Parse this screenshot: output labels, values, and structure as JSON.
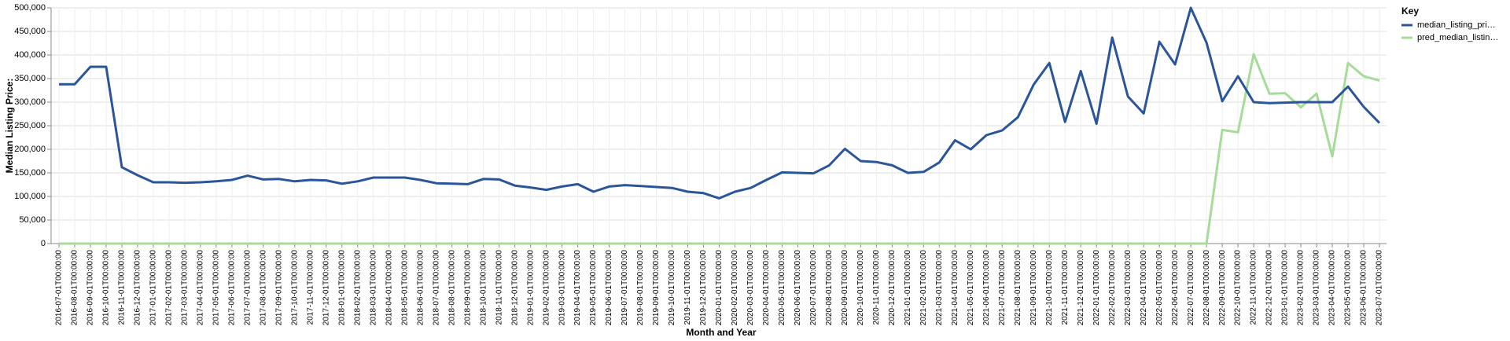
{
  "chart_data": {
    "type": "line",
    "x_label": "Month and Year",
    "y_label": "Median Listing Price:",
    "legend_title": "Key",
    "legend_position": "right",
    "grid": true,
    "categories": [
      "2016-07-01T00:00:00",
      "2016-08-01T00:00:00",
      "2016-09-01T00:00:00",
      "2016-10-01T00:00:00",
      "2016-11-01T00:00:00",
      "2016-12-01T00:00:00",
      "2017-01-01T00:00:00",
      "2017-02-01T00:00:00",
      "2017-03-01T00:00:00",
      "2017-04-01T00:00:00",
      "2017-05-01T00:00:00",
      "2017-06-01T00:00:00",
      "2017-07-01T00:00:00",
      "2017-08-01T00:00:00",
      "2017-09-01T00:00:00",
      "2017-10-01T00:00:00",
      "2017-11-01T00:00:00",
      "2017-12-01T00:00:00",
      "2018-01-01T00:00:00",
      "2018-02-01T00:00:00",
      "2018-03-01T00:00:00",
      "2018-04-01T00:00:00",
      "2018-05-01T00:00:00",
      "2018-06-01T00:00:00",
      "2018-07-01T00:00:00",
      "2018-08-01T00:00:00",
      "2018-09-01T00:00:00",
      "2018-10-01T00:00:00",
      "2018-11-01T00:00:00",
      "2018-12-01T00:00:00",
      "2019-01-01T00:00:00",
      "2019-02-01T00:00:00",
      "2019-03-01T00:00:00",
      "2019-04-01T00:00:00",
      "2019-05-01T00:00:00",
      "2019-06-01T00:00:00",
      "2019-07-01T00:00:00",
      "2019-08-01T00:00:00",
      "2019-09-01T00:00:00",
      "2019-10-01T00:00:00",
      "2019-11-01T00:00:00",
      "2019-12-01T00:00:00",
      "2020-01-01T00:00:00",
      "2020-02-01T00:00:00",
      "2020-03-01T00:00:00",
      "2020-04-01T00:00:00",
      "2020-05-01T00:00:00",
      "2020-06-01T00:00:00",
      "2020-07-01T00:00:00",
      "2020-08-01T00:00:00",
      "2020-09-01T00:00:00",
      "2020-10-01T00:00:00",
      "2020-11-01T00:00:00",
      "2020-12-01T00:00:00",
      "2021-01-01T00:00:00",
      "2021-02-01T00:00:00",
      "2021-03-01T00:00:00",
      "2021-04-01T00:00:00",
      "2021-05-01T00:00:00",
      "2021-06-01T00:00:00",
      "2021-07-01T00:00:00",
      "2021-08-01T00:00:00",
      "2021-09-01T00:00:00",
      "2021-10-01T00:00:00",
      "2021-11-01T00:00:00",
      "2021-12-01T00:00:00",
      "2022-01-01T00:00:00",
      "2022-02-01T00:00:00",
      "2022-03-01T00:00:00",
      "2022-04-01T00:00:00",
      "2022-05-01T00:00:00",
      "2022-06-01T00:00:00",
      "2022-07-01T00:00:00",
      "2022-08-01T00:00:00",
      "2022-09-01T00:00:00",
      "2022-10-01T00:00:00",
      "2022-11-01T00:00:00",
      "2022-12-01T00:00:00",
      "2023-01-01T00:00:00",
      "2023-02-01T00:00:00",
      "2023-03-01T00:00:00",
      "2023-04-01T00:00:00",
      "2023-05-01T00:00:00",
      "2023-06-01T00:00:00",
      "2023-07-01T00:00:00"
    ],
    "series": [
      {
        "name": "median_listing_pri…",
        "color": "#2a5599",
        "values": [
          338000,
          338000,
          375000,
          375000,
          162000,
          145000,
          130000,
          130000,
          129000,
          130000,
          132000,
          135000,
          144000,
          136000,
          137000,
          132000,
          135000,
          134000,
          127000,
          132000,
          140000,
          140000,
          140000,
          135000,
          128000,
          127000,
          126000,
          137000,
          136000,
          123000,
          119000,
          114000,
          121000,
          126000,
          110000,
          121000,
          124000,
          122000,
          120000,
          118000,
          110000,
          107000,
          96000,
          110000,
          118000,
          135000,
          151000,
          150000,
          149000,
          166000,
          201000,
          175000,
          173000,
          166000,
          150000,
          152000,
          172000,
          219000,
          200000,
          230000,
          240000,
          268000,
          337000,
          383000,
          258000,
          366000,
          254000,
          437000,
          312000,
          276000,
          428000,
          380000,
          500000,
          426000,
          302000,
          355000,
          300000,
          298000,
          299000,
          300000,
          300000,
          300000,
          333000,
          290000,
          256000
        ]
      },
      {
        "name": "pred_median_listin…",
        "color": "#a4dc98",
        "values": [
          0,
          0,
          0,
          0,
          0,
          0,
          0,
          0,
          0,
          0,
          0,
          0,
          0,
          0,
          0,
          0,
          0,
          0,
          0,
          0,
          0,
          0,
          0,
          0,
          0,
          0,
          0,
          0,
          0,
          0,
          0,
          0,
          0,
          0,
          0,
          0,
          0,
          0,
          0,
          0,
          0,
          0,
          0,
          0,
          0,
          0,
          0,
          0,
          0,
          0,
          0,
          0,
          0,
          0,
          0,
          0,
          0,
          0,
          0,
          0,
          0,
          0,
          0,
          0,
          0,
          0,
          0,
          0,
          0,
          0,
          0,
          0,
          0,
          0,
          241000,
          236000,
          402000,
          318000,
          319000,
          289000,
          318000,
          185000,
          383000,
          355000,
          346000
        ]
      }
    ],
    "ylim": [
      0,
      500000
    ],
    "yticks": [
      0,
      {
        "value": 50000,
        "label": "50,000"
      },
      {
        "value": 100000,
        "label": "100,000"
      },
      {
        "value": 150000,
        "label": "150,000"
      },
      {
        "value": 200000,
        "label": "200,000"
      },
      {
        "value": 250000,
        "label": "250,000"
      },
      {
        "value": 300000,
        "label": "300,000"
      },
      {
        "value": 350000,
        "label": "350,000"
      },
      {
        "value": 400000,
        "label": "400,000"
      },
      {
        "value": 450000,
        "label": "450,000"
      },
      {
        "value": 500000,
        "label": "500,000"
      }
    ]
  }
}
